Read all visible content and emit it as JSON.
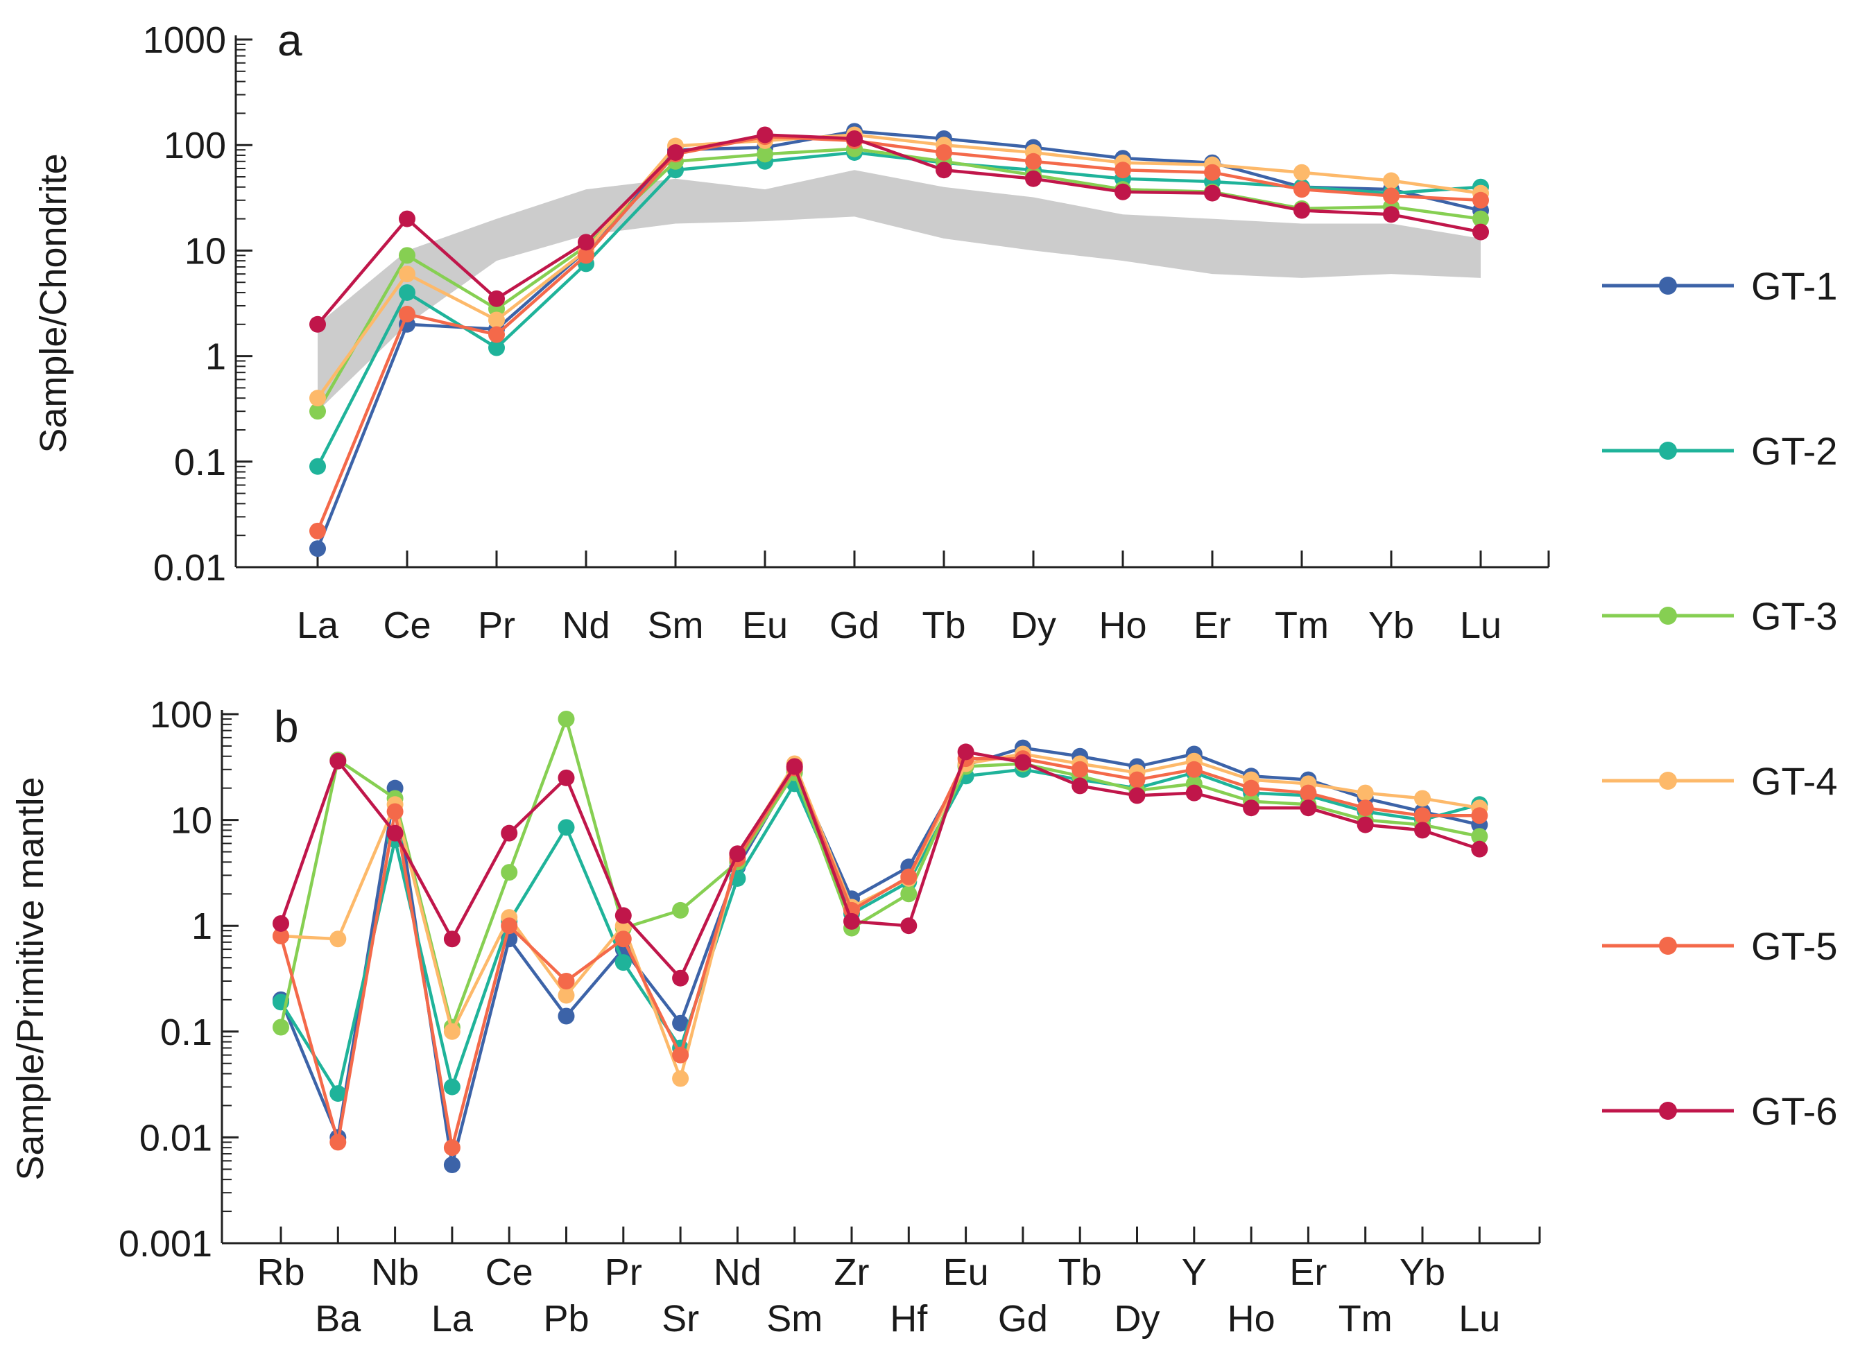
{
  "chart_data": [
    {
      "panel": "a",
      "type": "line",
      "yscale": "log",
      "ylabel": "Sample/Chondrite",
      "ylim": [
        0.01,
        1000
      ],
      "yticks": [
        {
          "value": 0.01,
          "label": "0.01"
        },
        {
          "value": 0.1,
          "label": "0.1"
        },
        {
          "value": 1,
          "label": "1"
        },
        {
          "value": 10,
          "label": "10"
        },
        {
          "value": 100,
          "label": "100"
        },
        {
          "value": 1000,
          "label": "1000"
        }
      ],
      "categories": [
        "La",
        "Ce",
        "Pr",
        "Nd",
        "Sm",
        "Eu",
        "Gd",
        "Tb",
        "Dy",
        "Ho",
        "Er",
        "Tm",
        "Yb",
        "Lu"
      ],
      "band": {
        "upper": [
          2.0,
          10,
          20,
          38,
          48,
          38,
          58,
          40,
          32,
          22,
          20,
          18,
          18,
          13
        ],
        "lower": [
          0.3,
          2.0,
          8,
          14,
          18,
          19,
          21,
          13,
          10,
          8,
          6,
          5.5,
          6,
          5.5
        ]
      },
      "series": [
        {
          "name": "GT-1",
          "values": [
            0.015,
            2.0,
            1.8,
            10,
            90,
            95,
            135,
            115,
            95,
            75,
            68,
            40,
            38,
            24
          ]
        },
        {
          "name": "GT-2",
          "values": [
            0.09,
            4.0,
            1.2,
            7.5,
            58,
            70,
            85,
            68,
            58,
            48,
            45,
            40,
            35,
            40
          ]
        },
        {
          "name": "GT-3",
          "values": [
            0.3,
            9.0,
            2.8,
            11,
            70,
            82,
            92,
            70,
            52,
            38,
            36,
            25,
            26,
            20
          ]
        },
        {
          "name": "GT-4",
          "values": [
            0.4,
            6.0,
            2.2,
            10,
            98,
            110,
            125,
            100,
            85,
            68,
            65,
            55,
            46,
            35
          ]
        },
        {
          "name": "GT-5",
          "values": [
            0.022,
            2.5,
            1.6,
            9,
            82,
            120,
            110,
            85,
            70,
            58,
            55,
            38,
            33,
            30
          ]
        },
        {
          "name": "GT-6",
          "values": [
            2.0,
            20,
            3.5,
            12,
            85,
            125,
            115,
            58,
            48,
            36,
            35,
            24,
            22,
            15
          ]
        }
      ]
    },
    {
      "panel": "b",
      "type": "line",
      "yscale": "log",
      "ylabel": "Sample/Primitive mantle",
      "ylim": [
        0.001,
        100
      ],
      "yticks": [
        {
          "value": 0.001,
          "label": "0.001"
        },
        {
          "value": 0.01,
          "label": "0.01"
        },
        {
          "value": 0.1,
          "label": "0.1"
        },
        {
          "value": 1,
          "label": "1"
        },
        {
          "value": 10,
          "label": "10"
        },
        {
          "value": 100,
          "label": "100"
        }
      ],
      "categories": [
        "Rb",
        "Ba",
        "Nb",
        "La",
        "Ce",
        "Pb",
        "Pr",
        "Sr",
        "Nd",
        "Sm",
        "Zr",
        "Hf",
        "Eu",
        "Gd",
        "Tb",
        "Dy",
        "Y",
        "Ho",
        "Er",
        "Tm",
        "Yb",
        "Lu"
      ],
      "series": [
        {
          "name": "GT-1",
          "values": [
            0.2,
            0.01,
            20,
            0.0055,
            0.75,
            0.14,
            0.6,
            0.12,
            3.6,
            30,
            1.8,
            3.6,
            33,
            48,
            40,
            32,
            42,
            26,
            24,
            16,
            12,
            9
          ]
        },
        {
          "name": "GT-2",
          "values": [
            0.19,
            0.026,
            6.5,
            0.03,
            1.1,
            8.5,
            0.45,
            0.07,
            2.8,
            22,
            1.3,
            2.6,
            26,
            30,
            24,
            20,
            28,
            18,
            17,
            12,
            10,
            14
          ]
        },
        {
          "name": "GT-3",
          "values": [
            0.11,
            37,
            16,
            0.11,
            3.2,
            90,
            0.95,
            1.4,
            4.0,
            28,
            0.95,
            2.0,
            32,
            34,
            26,
            19,
            22,
            15,
            14,
            10,
            9,
            7
          ]
        },
        {
          "name": "GT-4",
          "values": [
            0.8,
            0.75,
            14,
            0.1,
            1.2,
            0.22,
            1.0,
            0.036,
            4.6,
            34,
            1.5,
            2.8,
            34,
            42,
            34,
            28,
            36,
            24,
            22,
            18,
            16,
            13
          ]
        },
        {
          "name": "GT-5",
          "values": [
            0.8,
            0.009,
            12,
            0.008,
            1.0,
            0.3,
            0.75,
            0.06,
            4.3,
            31,
            1.4,
            2.9,
            38,
            38,
            30,
            24,
            30,
            20,
            18,
            13,
            11,
            11
          ]
        },
        {
          "name": "GT-6",
          "values": [
            1.05,
            36,
            7.5,
            0.75,
            7.5,
            25,
            1.25,
            0.32,
            4.8,
            32,
            1.1,
            1.0,
            44,
            35,
            21,
            17,
            18,
            13,
            13,
            9,
            8,
            5.3
          ]
        }
      ]
    }
  ],
  "colors": {
    "GT-1": "#3c63a8",
    "GT-2": "#1fb39a",
    "GT-3": "#86cf52",
    "GT-4": "#fdb96a",
    "GT-5": "#f4694a",
    "GT-6": "#c0164a",
    "band": "#cccccc"
  },
  "legend": [
    "GT-1",
    "GT-2",
    "GT-3",
    "GT-4",
    "GT-5",
    "GT-6"
  ]
}
